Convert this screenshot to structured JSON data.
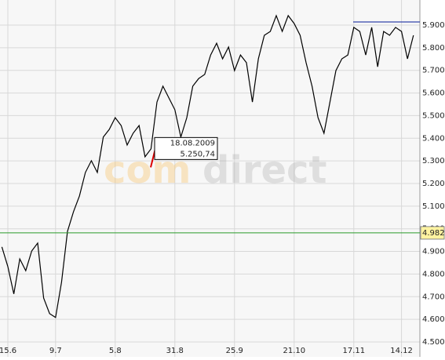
{
  "chart_data": {
    "type": "line",
    "watermark": [
      "com",
      "direct"
    ],
    "categories": [
      null,
      "15.6",
      null,
      null,
      null,
      null,
      null,
      null,
      null,
      "9.7",
      null,
      null,
      null,
      null,
      null,
      null,
      null,
      null,
      null,
      "5.8",
      null,
      null,
      null,
      null,
      null,
      null,
      null,
      null,
      null,
      "31.8",
      null,
      null,
      null,
      null,
      null,
      null,
      null,
      null,
      null,
      "25.9",
      null,
      null,
      null,
      null,
      null,
      null,
      null,
      null,
      null,
      "21.10",
      null,
      null,
      null,
      null,
      null,
      null,
      null,
      null,
      null,
      "17.11",
      null,
      null,
      null,
      null,
      null,
      null,
      null,
      "14.12",
      null,
      null
    ],
    "series": [
      {
        "color": "#000000",
        "values": [
          4920,
          4833,
          4712,
          4867,
          4815,
          4902,
          4937,
          4694,
          4625,
          4608,
          4764,
          4989,
          5075,
          5145,
          5249,
          5301,
          5249,
          5405,
          5439,
          5491,
          5456,
          5370,
          5422,
          5456,
          5318,
          5353,
          5560,
          5630,
          5578,
          5526,
          5405,
          5491,
          5630,
          5664,
          5682,
          5768,
          5820,
          5751,
          5803,
          5699,
          5768,
          5734,
          5560,
          5751,
          5855,
          5872,
          5942,
          5872,
          5942,
          5907,
          5855,
          5734,
          5630,
          5491,
          5422,
          5560,
          5699,
          5751,
          5768,
          5890,
          5872,
          5768,
          5890,
          5716,
          5872,
          5855,
          5890,
          5872,
          5751,
          5855
        ]
      }
    ],
    "ylim": [
      4434,
      6011
    ],
    "yticks": [
      {
        "value": 4500,
        "label": "4.500"
      },
      {
        "value": 4600,
        "label": "4.600"
      },
      {
        "value": 4700,
        "label": "4.700"
      },
      {
        "value": 4800,
        "label": "4.800"
      },
      {
        "value": 4900,
        "label": "4.900"
      },
      {
        "value": 5000,
        "label": "5.000"
      },
      {
        "value": 5100,
        "label": "5.100"
      },
      {
        "value": 5200,
        "label": "5.200"
      },
      {
        "value": 5300,
        "label": "5.300"
      },
      {
        "value": 5400,
        "label": "5.400"
      },
      {
        "value": 5500,
        "label": "5.500"
      },
      {
        "value": 5600,
        "label": "5.600"
      },
      {
        "value": 5700,
        "label": "5.700"
      },
      {
        "value": 5800,
        "label": "5.800"
      },
      {
        "value": 5900,
        "label": "5.900"
      }
    ],
    "grid": true,
    "reference_line": {
      "value": 4982,
      "label": "4.982",
      "color": "#2a9a2a"
    },
    "resistance_line": {
      "value": 5914,
      "color": "#3344aa"
    },
    "tooltip": {
      "title": "18.08.2009",
      "value": 5250.74,
      "label": "5.250,74"
    }
  }
}
